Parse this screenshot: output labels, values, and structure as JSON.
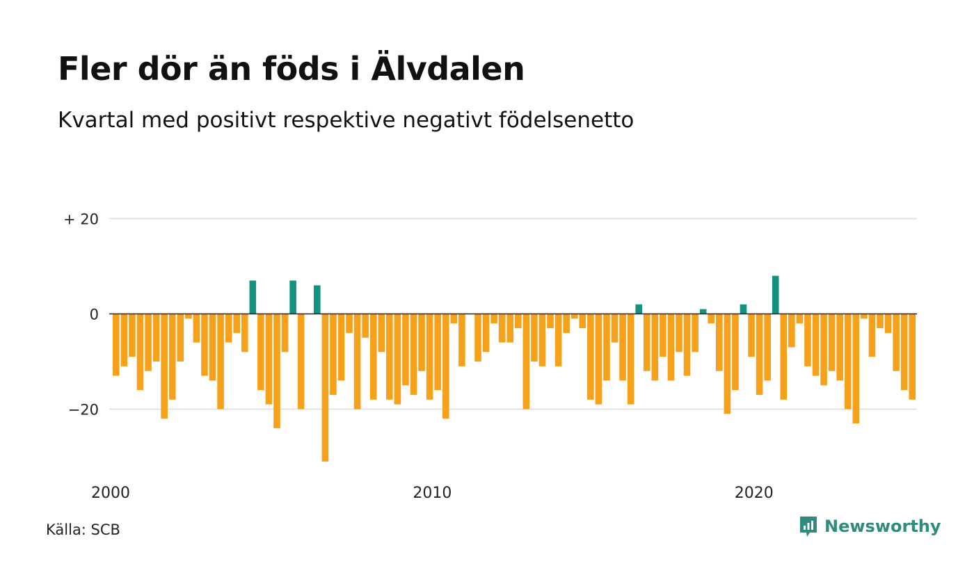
{
  "header": {
    "title": "Fler dör än föds i Älvdalen",
    "subtitle": "Kvartal med positivt respektive negativt födelsenetto"
  },
  "footer": {
    "source": "Källa: SCB",
    "brand": "Newsworthy",
    "brand_icon": "newsworthy-logo-icon"
  },
  "colors": {
    "positive": "#15917f",
    "negative": "#f7a11a",
    "grid": "#e3e3e3",
    "zero_line": "#222222"
  },
  "chart_data": {
    "type": "bar",
    "title": "Fler dör än föds i Älvdalen",
    "subtitle": "Kvartal med positivt respektive negativt födelsenetto",
    "x_start": "2000-Q1",
    "x_tick_labels": [
      "2000",
      "2010",
      "2020"
    ],
    "y_tick_labels": [
      "+ 20",
      "0",
      "−20"
    ],
    "y_ticks": [
      20,
      0,
      -20
    ],
    "ylim": [
      -32,
      20
    ],
    "grid": true,
    "values": [
      -13,
      -11,
      -9,
      -16,
      -12,
      -10,
      -22,
      -18,
      -10,
      -1,
      -6,
      -13,
      -14,
      -20,
      -6,
      -4,
      -8,
      7,
      -16,
      -19,
      -24,
      -8,
      7,
      -20,
      0,
      6,
      -31,
      -17,
      -14,
      -4,
      -20,
      -5,
      -18,
      -8,
      -18,
      -19,
      -15,
      -17,
      -12,
      -18,
      -16,
      -22,
      -2,
      -11,
      0,
      -10,
      -8,
      -2,
      -6,
      -6,
      -3,
      -20,
      -10,
      -11,
      -3,
      -11,
      -4,
      -1,
      -3,
      -18,
      -19,
      -14,
      -6,
      -14,
      -19,
      2,
      -12,
      -14,
      -9,
      -14,
      -8,
      -13,
      -8,
      1,
      -2,
      -12,
      -21,
      -16,
      2,
      -9,
      -17,
      -14,
      8,
      -18,
      -7,
      -2,
      -11,
      -13,
      -15,
      -12,
      -14,
      -20,
      -23,
      -1,
      -9,
      -3,
      -4,
      -12,
      -16,
      -18
    ]
  }
}
